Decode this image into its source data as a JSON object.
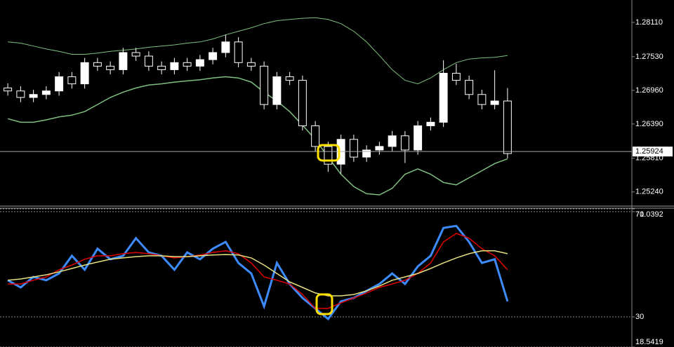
{
  "chart_data": [
    {
      "type": "candlestick",
      "categories": [
        null,
        null,
        null,
        null,
        null,
        null,
        null,
        null,
        null,
        null,
        null,
        null,
        null,
        null,
        null,
        null,
        null,
        null,
        null,
        null,
        null,
        null,
        null,
        null,
        null,
        null,
        null,
        null,
        null,
        null,
        null,
        null,
        null,
        null,
        null,
        null,
        null,
        null,
        null,
        null
      ],
      "open": [
        1.27,
        1.2695,
        1.2684,
        1.2689,
        1.2695,
        1.2719,
        1.2707,
        1.2743,
        1.2737,
        1.2731,
        1.276,
        1.2754,
        1.2737,
        1.2731,
        1.2743,
        1.2737,
        1.2748,
        1.276,
        1.2778,
        1.2743,
        1.2737,
        1.2672,
        1.2719,
        1.2713,
        1.2636,
        1.2601,
        1.2571,
        1.2613,
        1.2583,
        1.2595,
        1.2601,
        1.2619,
        1.2595,
        1.2636,
        1.2642,
        1.2725,
        1.2713,
        1.2689,
        1.2672,
        1.2678
      ],
      "high": [
        1.2708,
        1.2703,
        1.2697,
        1.2703,
        1.2727,
        1.2727,
        1.2751,
        1.2751,
        1.2745,
        1.2768,
        1.2768,
        1.2762,
        1.2745,
        1.2751,
        1.2751,
        1.2756,
        1.2768,
        1.279,
        1.2786,
        1.2751,
        1.2745,
        1.2727,
        1.2727,
        1.2721,
        1.2644,
        1.2609,
        1.2621,
        1.2621,
        1.2603,
        1.2609,
        1.2627,
        1.2627,
        1.2644,
        1.265,
        1.2747,
        1.2741,
        1.2721,
        1.2697,
        1.273,
        1.27
      ],
      "low": [
        1.2687,
        1.2676,
        1.2676,
        1.2681,
        1.2687,
        1.2699,
        1.2699,
        1.2729,
        1.2723,
        1.2723,
        1.2746,
        1.2729,
        1.2723,
        1.2723,
        1.2729,
        1.2729,
        1.274,
        1.2752,
        1.2735,
        1.2729,
        1.2664,
        1.2664,
        1.2705,
        1.2628,
        1.2593,
        1.2558,
        1.2555,
        1.2575,
        1.2575,
        1.2587,
        1.2593,
        1.2573,
        1.2587,
        1.2628,
        1.2634,
        1.2705,
        1.2681,
        1.2664,
        1.2664,
        1.2581
      ],
      "close": [
        1.2695,
        1.2684,
        1.2689,
        1.2695,
        1.2719,
        1.2707,
        1.2743,
        1.2737,
        1.2731,
        1.276,
        1.2754,
        1.2737,
        1.2731,
        1.2743,
        1.2737,
        1.2748,
        1.276,
        1.2778,
        1.2743,
        1.2737,
        1.2672,
        1.2719,
        1.2713,
        1.2636,
        1.2601,
        1.2571,
        1.2613,
        1.2583,
        1.2595,
        1.2601,
        1.2619,
        1.2595,
        1.2636,
        1.2642,
        1.2725,
        1.2713,
        1.2689,
        1.2672,
        1.2678,
        1.2589
      ],
      "up_color": "#ffffff",
      "down_color": "#000000",
      "wick_color": "#ffffff",
      "series": [
        {
          "color": "#7fbf7f",
          "values": [
            1.2778,
            1.2776,
            1.2771,
            1.2766,
            1.2762,
            1.2757,
            1.2757,
            1.2759,
            1.2762,
            1.2764,
            1.2766,
            1.2769,
            1.2771,
            1.2773,
            1.2776,
            1.2778,
            1.2783,
            1.279,
            1.2796,
            1.2802,
            1.2809,
            1.2814,
            1.2816,
            1.2818,
            1.2819,
            1.2816,
            1.2809,
            1.2796,
            1.2778,
            1.2755,
            1.2731,
            1.2713,
            1.2707,
            1.2717,
            1.2731,
            1.2743,
            1.2749,
            1.2751,
            1.2752,
            1.2755
          ]
        },
        {
          "color": "#7fbf7f",
          "values": [
            1.2648,
            1.2642,
            1.2642,
            1.2646,
            1.2651,
            1.2654,
            1.266,
            1.2672,
            1.2684,
            1.2693,
            1.27,
            1.2705,
            1.2707,
            1.271,
            1.2712,
            1.2714,
            1.2717,
            1.2719,
            1.2717,
            1.271,
            1.2693,
            1.2678,
            1.266,
            1.2637,
            1.2613,
            1.2583,
            1.2554,
            1.2533,
            1.2521,
            1.2519,
            1.253,
            1.2554,
            1.2563,
            1.2554,
            1.254,
            1.2536,
            1.2548,
            1.256,
            1.2572,
            1.258
          ]
        }
      ],
      "current_price": 1.25924,
      "ylim": [
        1.25,
        1.2849
      ],
      "yticks": [
        {
          "value": 1.2811,
          "label": "1.28110"
        },
        {
          "value": 1.2753,
          "label": "1.27530"
        },
        {
          "value": 1.2696,
          "label": "1.26960"
        },
        {
          "value": 1.2639,
          "label": "1.26390"
        },
        {
          "value": 1.2581,
          "label": "1.25810"
        },
        {
          "value": 1.2524,
          "label": "1.25240"
        }
      ],
      "grid": false
    },
    {
      "type": "line",
      "categories": [
        null,
        null,
        null,
        null,
        null,
        null,
        null,
        null,
        null,
        null,
        null,
        null,
        null,
        null,
        null,
        null,
        null,
        null,
        null,
        null,
        null,
        null,
        null,
        null,
        null,
        null,
        null,
        null,
        null,
        null,
        null,
        null,
        null,
        null,
        null,
        null,
        null,
        null,
        null,
        null
      ],
      "series": [
        {
          "color": "#3c8cff",
          "values": [
            43.9,
            41.2,
            45.2,
            43.9,
            46.5,
            53.2,
            47.9,
            55.9,
            51.9,
            53.2,
            59.9,
            54.5,
            53.2,
            47.9,
            54.5,
            51.9,
            55.9,
            58.5,
            50.5,
            46.5,
            34.0,
            50.5,
            42.5,
            37.2,
            33.2,
            29.2,
            35.9,
            37.2,
            39.9,
            42.5,
            46.5,
            42.5,
            49.2,
            53.2,
            63.8,
            64.6,
            58.5,
            50.5,
            51.9,
            35.9
          ]
        },
        {
          "color": "#e00000",
          "values": [
            42.5,
            42.5,
            43.9,
            45.2,
            47.9,
            49.7,
            51.9,
            53.2,
            53.2,
            54.0,
            54.5,
            54.0,
            53.2,
            52.4,
            52.9,
            53.5,
            54.5,
            55.1,
            54.0,
            50.5,
            45.2,
            43.9,
            42.5,
            38.5,
            33.2,
            33.2,
            35.3,
            37.2,
            39.1,
            41.2,
            42.5,
            43.9,
            46.5,
            50.5,
            58.5,
            61.7,
            59.9,
            55.9,
            53.2,
            47.9
          ]
        },
        {
          "color": "#e8e080",
          "values": [
            43.9,
            44.4,
            45.2,
            46.0,
            47.1,
            48.4,
            49.7,
            50.8,
            51.9,
            52.4,
            52.9,
            53.2,
            53.2,
            52.9,
            52.9,
            53.2,
            53.5,
            53.7,
            53.5,
            52.4,
            49.7,
            46.5,
            43.3,
            41.2,
            39.1,
            38.0,
            38.0,
            38.5,
            39.9,
            41.7,
            43.9,
            45.2,
            46.5,
            48.4,
            50.5,
            52.4,
            54.0,
            55.1,
            55.1,
            54.0
          ]
        }
      ],
      "ylim": [
        18.5419,
        71.0392
      ],
      "yticks": [
        71.0392,
        70,
        30,
        18.5419
      ],
      "grid": true
    }
  ]
}
